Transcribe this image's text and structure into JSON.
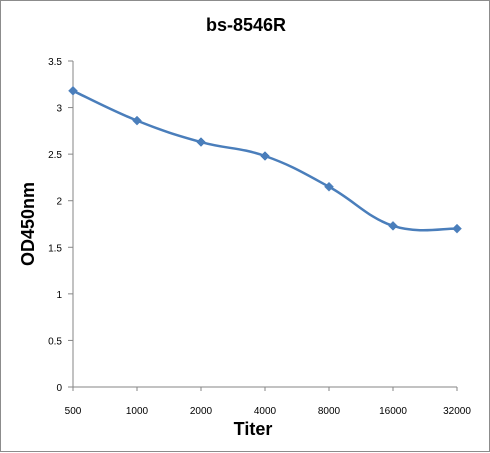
{
  "chart_data": {
    "type": "line",
    "title": "bs-8546R",
    "xlabel": "Titer",
    "ylabel": "OD450nm",
    "categories": [
      "500",
      "1000",
      "2000",
      "4000",
      "8000",
      "16000",
      "32000"
    ],
    "series": [
      {
        "values": [
          3.18,
          2.86,
          2.63,
          2.48,
          2.15,
          1.73,
          1.7
        ]
      }
    ],
    "ylim": [
      0,
      3.5
    ],
    "yticks": [
      "0",
      "0.5",
      "1",
      "1.5",
      "2",
      "2.5",
      "3",
      "3.5"
    ],
    "grid": false,
    "legend": "none",
    "smooth": true,
    "line_color": "#4a7ebb",
    "marker": "diamond"
  }
}
